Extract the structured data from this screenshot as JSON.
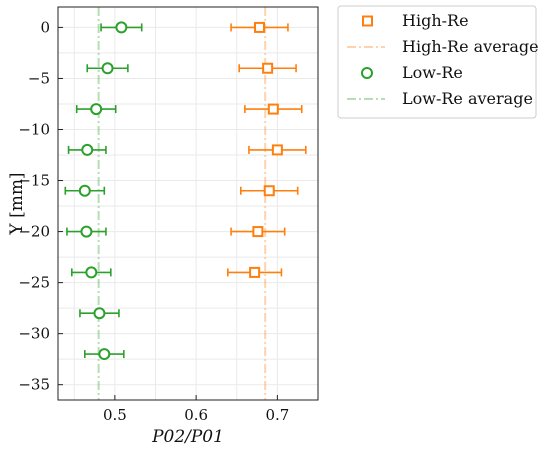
{
  "chart_data": {
    "type": "scatter",
    "title": "",
    "xlabel": "P02/P01",
    "ylabel": "Y [mm]",
    "xlim": [
      0.43,
      0.75
    ],
    "ylim": [
      -36.5,
      2
    ],
    "xticks": [
      0.5,
      0.6,
      0.7
    ],
    "yticks": [
      0,
      -5,
      -10,
      -15,
      -20,
      -25,
      -30,
      -35
    ],
    "xtick_labels": [
      "0.5",
      "0.6",
      "0.7"
    ],
    "ytick_labels": [
      "0",
      "−5",
      "−10",
      "−15",
      "−20",
      "−25",
      "−30",
      "−35"
    ],
    "grid": true,
    "legend_position": "outside-right-top",
    "series": [
      {
        "name": "High-Re",
        "marker": "square",
        "color": "#ff7f0e",
        "x": [
          0.678,
          0.688,
          0.695,
          0.7,
          0.69,
          0.676,
          0.672
        ],
        "y": [
          0,
          -4,
          -8,
          -12,
          -16,
          -20,
          -24
        ],
        "xerr": [
          0.035,
          0.035,
          0.035,
          0.035,
          0.035,
          0.033,
          0.033
        ]
      },
      {
        "name": "Low-Re",
        "marker": "circle",
        "color": "#2ca02c",
        "x": [
          0.508,
          0.491,
          0.477,
          0.466,
          0.463,
          0.465,
          0.471,
          0.481,
          0.487
        ],
        "y": [
          0,
          -4,
          -8,
          -12,
          -16,
          -20,
          -24,
          -28,
          -32
        ],
        "xerr": [
          0.025,
          0.025,
          0.024,
          0.023,
          0.024,
          0.024,
          0.024,
          0.024,
          0.024
        ]
      }
    ],
    "reference_lines": [
      {
        "name": "High-Re average",
        "x": 0.685,
        "color": "#ff7f0e",
        "style": "dash-dot"
      },
      {
        "name": "Low-Re average",
        "x": 0.48,
        "color": "#2ca02c",
        "style": "dash-dot"
      }
    ]
  }
}
